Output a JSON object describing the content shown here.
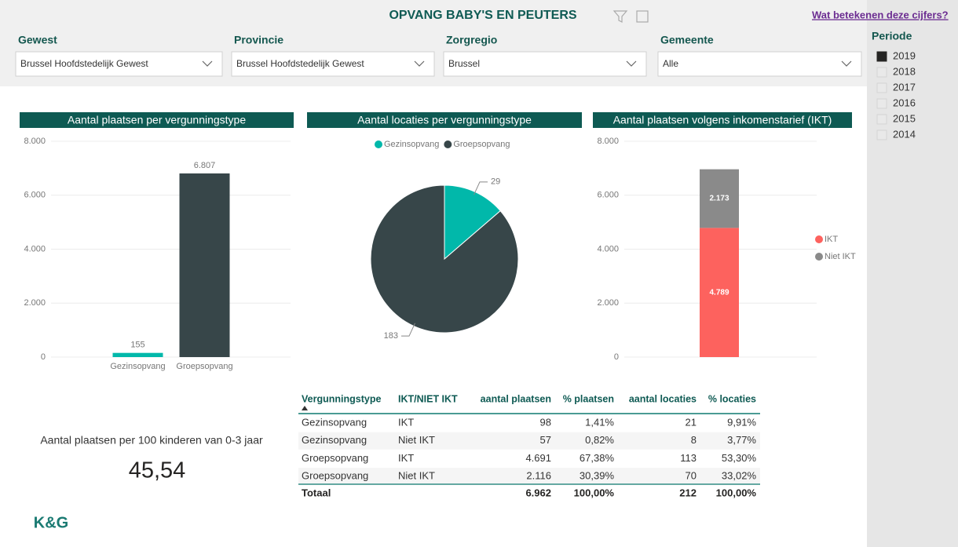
{
  "header": {
    "title": "OPVANG BABY'S EN PEUTERS",
    "link": "Wat betekenen deze cijfers?"
  },
  "filters": [
    {
      "label": "Gewest",
      "value": "Brussel Hoofdstedelijk Gewest"
    },
    {
      "label": "Provincie",
      "value": "Brussel Hoofdstedelijk Gewest"
    },
    {
      "label": "Zorgregio",
      "value": "Brussel"
    },
    {
      "label": "Gemeente",
      "value": "Alle"
    }
  ],
  "period": {
    "label": "Periode",
    "options": [
      "2019",
      "2018",
      "2017",
      "2016",
      "2015",
      "2014"
    ],
    "selected": "2019"
  },
  "chart_data": [
    {
      "type": "bar",
      "title": "Aantal plaatsen per vergunningstype",
      "categories": [
        "Gezinsopvang",
        "Groepsopvang"
      ],
      "values": [
        155,
        6807
      ],
      "value_labels": [
        "155",
        "6.807"
      ],
      "colors": [
        "#01b8aa",
        "#374649"
      ],
      "ylim": [
        0,
        8000
      ],
      "yticks": [
        0,
        {
          "value": 2000,
          "label": "2.000"
        },
        {
          "value": 4000,
          "label": "4.000"
        },
        {
          "value": 6000,
          "label": "6.000"
        },
        {
          "value": 8000,
          "label": "8.000"
        }
      ],
      "grid": true
    },
    {
      "type": "pie",
      "title": "Aantal locaties per vergunningstype",
      "categories": [
        "Gezinsopvang",
        "Groepsopvang"
      ],
      "values": [
        29,
        183
      ],
      "colors": [
        "#01b8aa",
        "#374649"
      ],
      "legend": "top"
    },
    {
      "type": "stacked_bar",
      "title": "Aantal plaatsen volgens inkomenstarief (IKT)",
      "categories": [
        null
      ],
      "series": [
        {
          "name": "IKT",
          "color": "#fd625e",
          "values": [
            4789
          ],
          "value_labels": [
            "4.789"
          ]
        },
        {
          "name": "Niet IKT",
          "color": "#8a8a8a",
          "values": [
            2173
          ],
          "value_labels": [
            "2.173"
          ]
        }
      ],
      "ylim": [
        0,
        8000
      ],
      "yticks": [
        0,
        {
          "value": 2000,
          "label": "2.000"
        },
        {
          "value": 4000,
          "label": "4.000"
        },
        {
          "value": 6000,
          "label": "6.000"
        },
        {
          "value": 8000,
          "label": "8.000"
        }
      ],
      "grid": true,
      "legend": "right"
    }
  ],
  "kpi": {
    "label": "Aantal plaatsen per 100 kinderen van 0-3 jaar",
    "value": "45,54"
  },
  "table": {
    "columns": [
      "Vergunningstype",
      "IKT/NIET IKT",
      "aantal plaatsen",
      "% plaatsen",
      "aantal locaties",
      "% locaties"
    ],
    "rows": [
      [
        "Gezinsopvang",
        "IKT",
        "98",
        "1,41%",
        "21",
        "9,91%"
      ],
      [
        "Gezinsopvang",
        "Niet IKT",
        "57",
        "0,82%",
        "8",
        "3,77%"
      ],
      [
        "Groepsopvang",
        "IKT",
        "4.691",
        "67,38%",
        "113",
        "53,30%"
      ],
      [
        "Groepsopvang",
        "Niet IKT",
        "2.116",
        "30,39%",
        "70",
        "33,02%"
      ]
    ],
    "total": [
      "Totaal",
      "6.962",
      "100,00%",
      "212",
      "100,00%"
    ]
  },
  "logo": "K&G"
}
